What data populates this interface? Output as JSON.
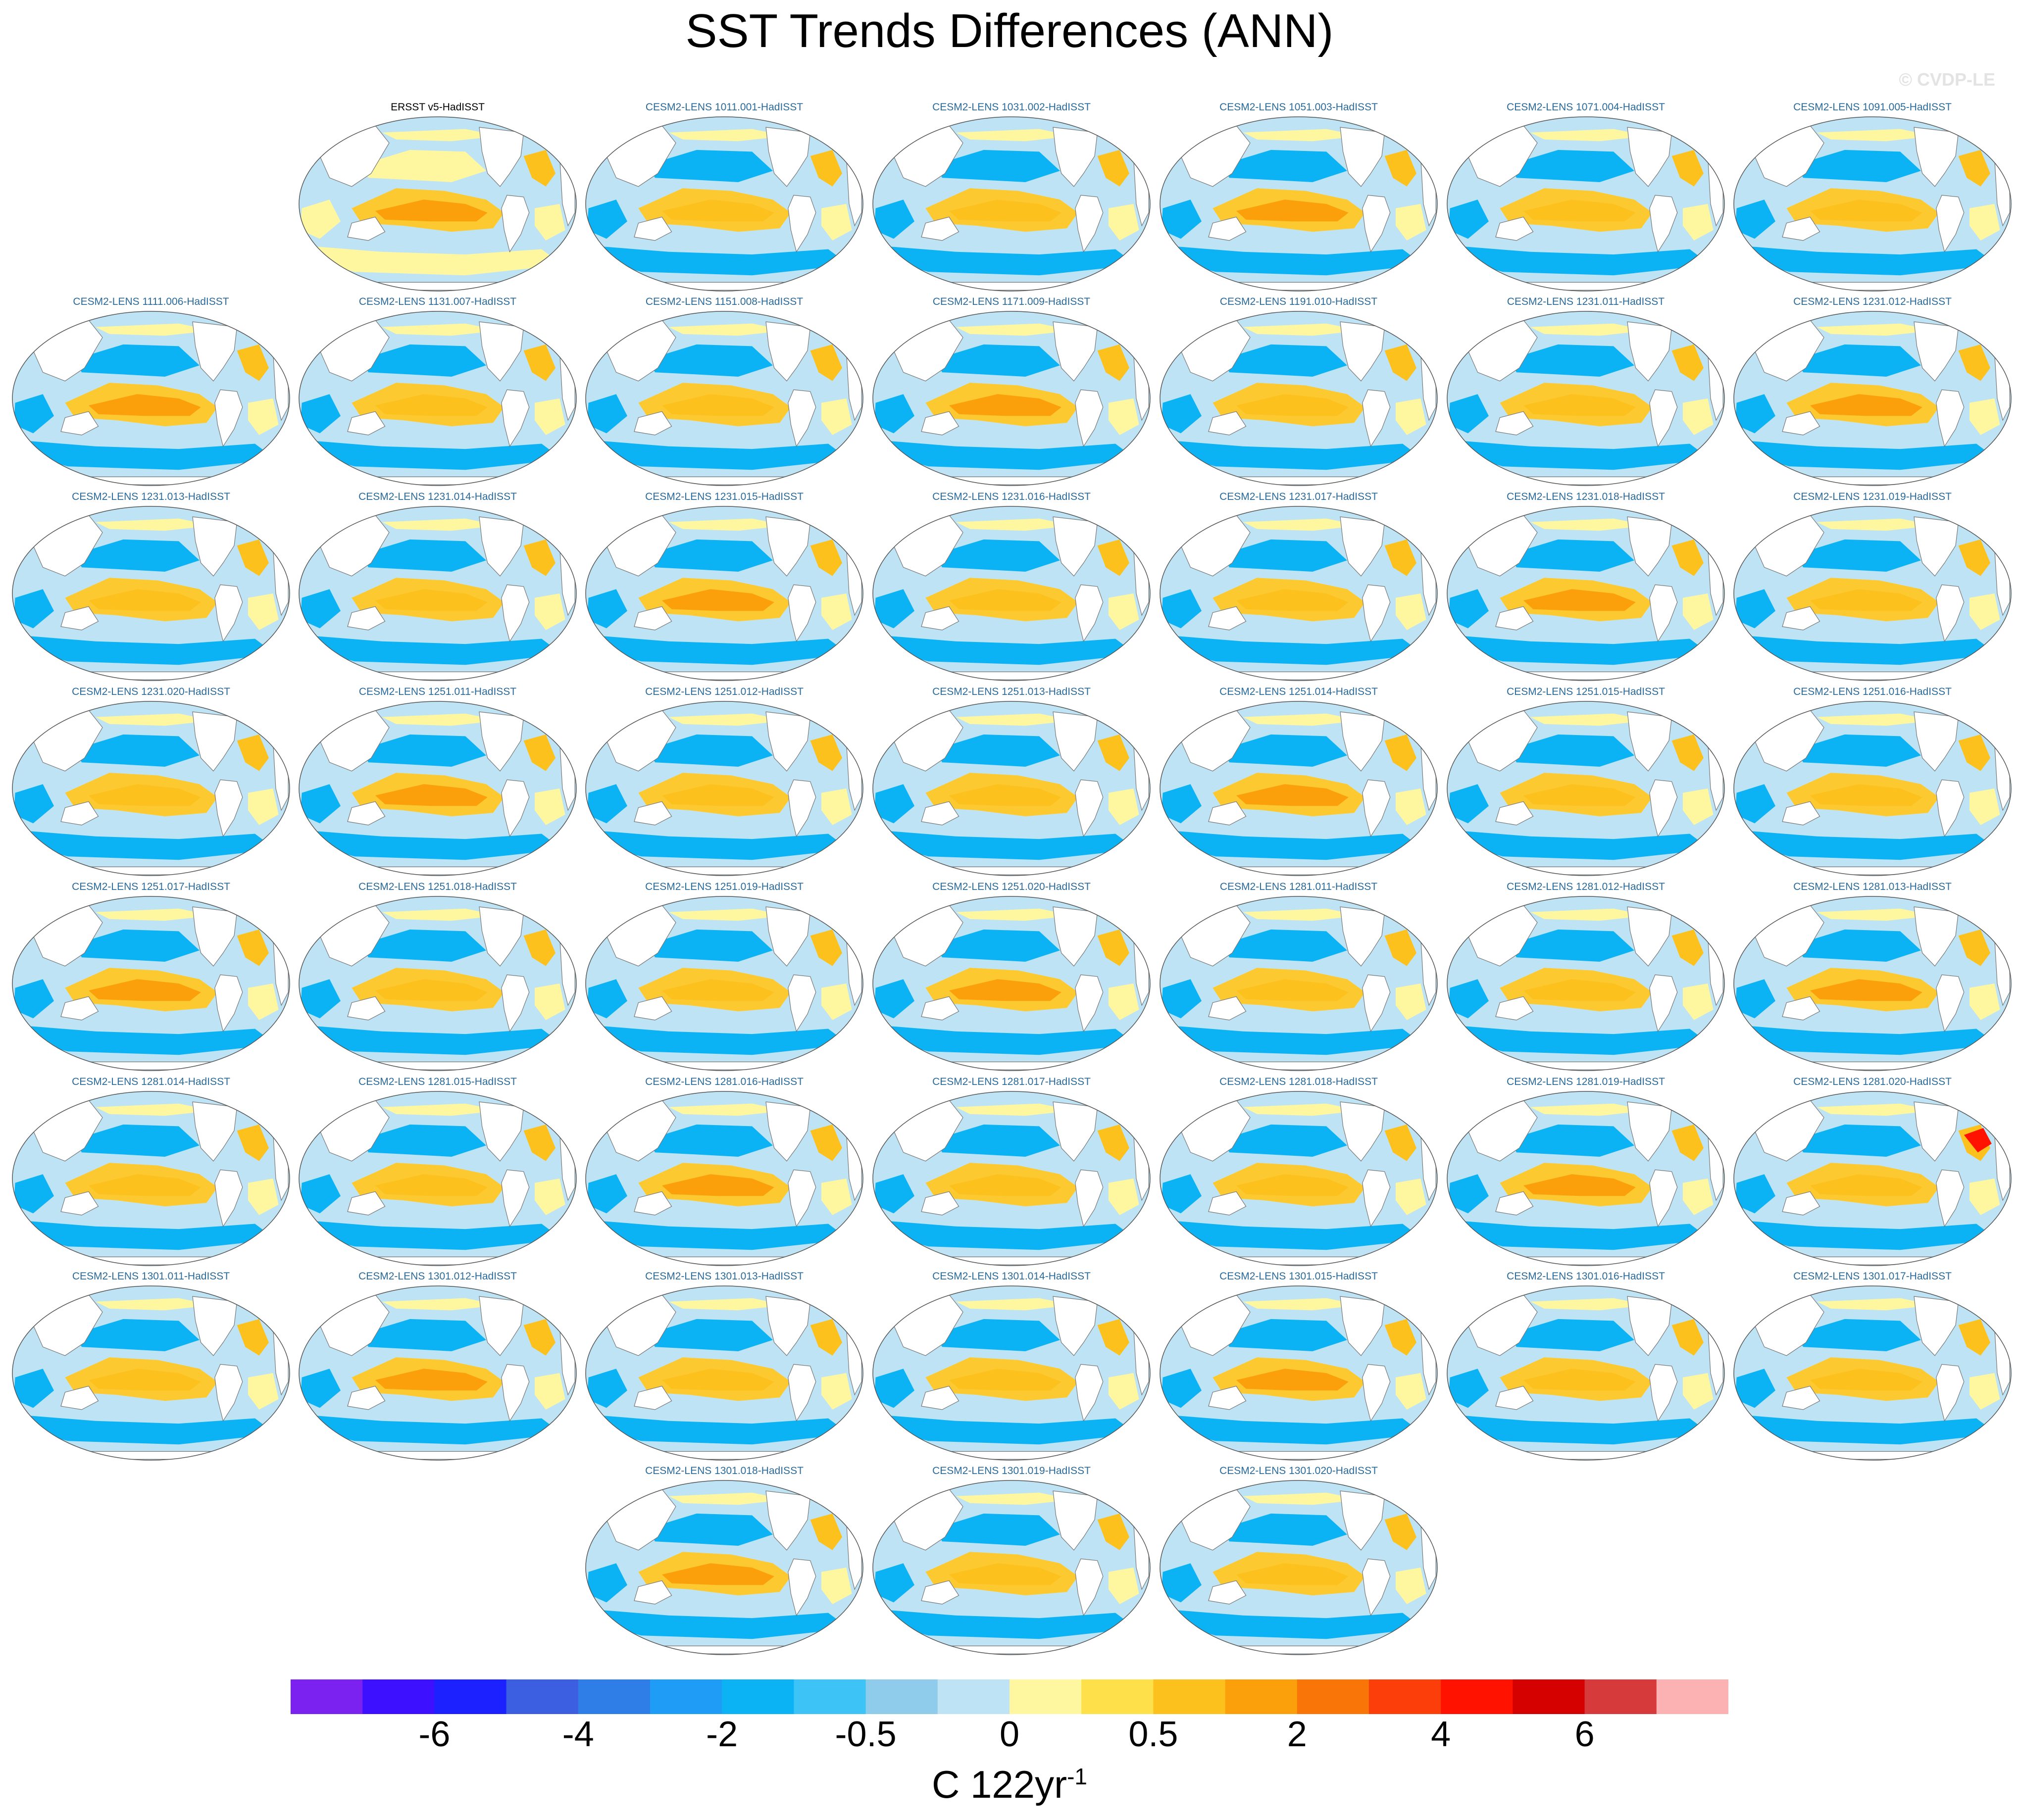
{
  "title": "SST Trends Differences (ANN)",
  "watermark": "© CVDP-LE",
  "colorbar": {
    "colors": [
      "#7b21f0",
      "#3d10ff",
      "#1b22ff",
      "#3b5fe0",
      "#2f7ee8",
      "#1f9cf5",
      "#0bb3f5",
      "#3ec3f7",
      "#8fcceb",
      "#bee3f4",
      "#fef7a0",
      "#fde04a",
      "#fcc11d",
      "#fb9f0a",
      "#fa7508",
      "#fc3e0b",
      "#ff1300",
      "#d50000",
      "#d73a3a",
      "#fcb2b2"
    ],
    "tick_labels": [
      "-6",
      "-4",
      "-2",
      "-0.5",
      "0",
      "0.5",
      "2",
      "4",
      "6"
    ],
    "units_main": "C 122yr",
    "units_sup": "-1"
  },
  "chart_data": {
    "type": "heatmap",
    "variable": "SST trend difference",
    "season": "ANN",
    "projection": "Robinson global map, Pacific-centered",
    "panels": [
      "ERSST v5-HadISST",
      "CESM2-LENS 1011.001-HadISST",
      "CESM2-LENS 1031.002-HadISST",
      "CESM2-LENS 1051.003-HadISST",
      "CESM2-LENS 1071.004-HadISST",
      "CESM2-LENS 1091.005-HadISST",
      "CESM2-LENS 1111.006-HadISST",
      "CESM2-LENS 1131.007-HadISST",
      "CESM2-LENS 1151.008-HadISST",
      "CESM2-LENS 1171.009-HadISST",
      "CESM2-LENS 1191.010-HadISST",
      "CESM2-LENS 1231.011-HadISST",
      "CESM2-LENS 1231.012-HadISST",
      "CESM2-LENS 1231.013-HadISST",
      "CESM2-LENS 1231.014-HadISST",
      "CESM2-LENS 1231.015-HadISST",
      "CESM2-LENS 1231.016-HadISST",
      "CESM2-LENS 1231.017-HadISST",
      "CESM2-LENS 1231.018-HadISST",
      "CESM2-LENS 1231.019-HadISST",
      "CESM2-LENS 1231.020-HadISST",
      "CESM2-LENS 1251.011-HadISST",
      "CESM2-LENS 1251.012-HadISST",
      "CESM2-LENS 1251.013-HadISST",
      "CESM2-LENS 1251.014-HadISST",
      "CESM2-LENS 1251.015-HadISST",
      "CESM2-LENS 1251.016-HadISST",
      "CESM2-LENS 1251.017-HadISST",
      "CESM2-LENS 1251.018-HadISST",
      "CESM2-LENS 1251.019-HadISST",
      "CESM2-LENS 1251.020-HadISST",
      "CESM2-LENS 1281.011-HadISST",
      "CESM2-LENS 1281.012-HadISST",
      "CESM2-LENS 1281.013-HadISST",
      "CESM2-LENS 1281.014-HadISST",
      "CESM2-LENS 1281.015-HadISST",
      "CESM2-LENS 1281.016-HadISST",
      "CESM2-LENS 1281.017-HadISST",
      "CESM2-LENS 1281.018-HadISST",
      "CESM2-LENS 1281.019-HadISST",
      "CESM2-LENS 1281.020-HadISST",
      "CESM2-LENS 1301.011-HadISST",
      "CESM2-LENS 1301.012-HadISST",
      "CESM2-LENS 1301.013-HadISST",
      "CESM2-LENS 1301.014-HadISST",
      "CESM2-LENS 1301.015-HadISST",
      "CESM2-LENS 1301.016-HadISST",
      "CESM2-LENS 1301.017-HadISST",
      "CESM2-LENS 1301.018-HadISST",
      "CESM2-LENS 1301.019-HadISST",
      "CESM2-LENS 1301.020-HadISST"
    ],
    "colorbar_levels": [
      -7,
      -6,
      -5,
      -4,
      -3,
      -2,
      -1,
      -0.5,
      -0.25,
      0,
      0.25,
      0.5,
      1,
      2,
      3,
      4,
      5,
      6,
      7
    ],
    "colorbar_label": "C 122yr-1"
  }
}
